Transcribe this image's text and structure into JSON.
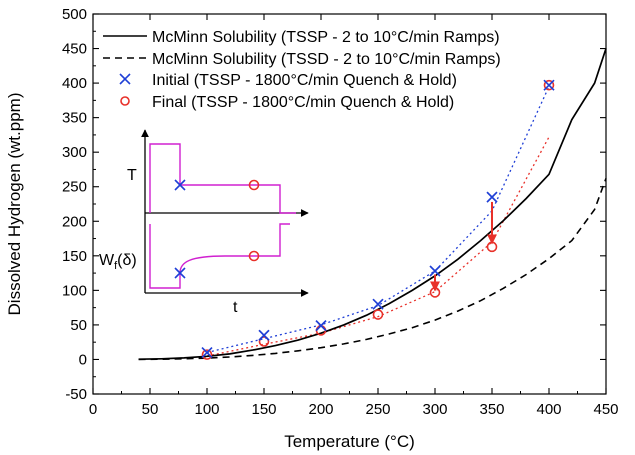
{
  "chart_data": {
    "type": "line",
    "xlabel": "Temperature (°C)",
    "ylabel": "Dissolved Hydrogen (wt.ppm)",
    "xlim": [
      0,
      450
    ],
    "ylim": [
      -50,
      500
    ],
    "x_ticks": [
      0,
      50,
      100,
      150,
      200,
      250,
      300,
      350,
      400,
      450
    ],
    "y_ticks": [
      -50,
      0,
      50,
      100,
      150,
      200,
      250,
      300,
      350,
      400,
      450,
      500
    ],
    "grid": false,
    "legend_position": "top",
    "series": [
      {
        "name": "McMinn Solubility (TSSP - 2 to 10°C/min Ramps)",
        "style": "solid line",
        "color": "#000000",
        "x": [
          40,
          60,
          80,
          100,
          120,
          140,
          160,
          180,
          200,
          220,
          240,
          260,
          280,
          300,
          320,
          340,
          360,
          380,
          400,
          420,
          440,
          450
        ],
        "y": [
          0.3,
          1,
          2.3,
          4.6,
          8,
          13.5,
          20,
          28,
          38,
          50,
          64,
          81,
          100,
          121,
          145,
          172,
          201,
          233,
          268,
          347,
          400,
          450
        ]
      },
      {
        "name": "McMinn Solubility (TSSD - 2 to 10°C/min Ramps)",
        "style": "dashed line",
        "color": "#000000",
        "x": [
          40,
          60,
          80,
          100,
          120,
          140,
          160,
          180,
          200,
          220,
          240,
          260,
          280,
          300,
          320,
          340,
          360,
          380,
          400,
          420,
          440,
          450
        ],
        "y": [
          0.1,
          0.4,
          1,
          2,
          3.6,
          5.8,
          8.8,
          12.5,
          17,
          22.5,
          29,
          37,
          46,
          57,
          70,
          85,
          103,
          123,
          146,
          172,
          217,
          262
        ]
      },
      {
        "name": "Initial (TSSP - 1800°C/min Quench & Hold)",
        "marker": "x",
        "color": "#1f3fd6",
        "x": [
          100,
          150,
          200,
          250,
          300,
          350,
          400
        ],
        "y": [
          10,
          35,
          49,
          80,
          128,
          235,
          397
        ]
      },
      {
        "name": "Final (TSSP - 1800°C/min Quench & Hold)",
        "marker": "circle",
        "color": "#e8312a",
        "x": [
          100,
          150,
          200,
          250,
          300,
          350,
          400
        ],
        "y": [
          7,
          26,
          42,
          65,
          97,
          163,
          397
        ]
      }
    ],
    "fit_lines": [
      {
        "of_series": "Initial (TSSP - 1800°C/min Quench & Hold)",
        "style": "dotted",
        "color": "#1f3fd6",
        "x": [
          100,
          150,
          200,
          250,
          300,
          350,
          400
        ],
        "y": [
          10,
          30,
          50,
          78,
          128,
          215,
          395
        ]
      },
      {
        "of_series": "Final (TSSP - 1800°C/min Quench & Hold)",
        "style": "dotted",
        "color": "#e8312a",
        "x": [
          100,
          150,
          200,
          250,
          300,
          350,
          400
        ],
        "y": [
          5,
          22,
          38,
          62,
          98,
          170,
          322
        ]
      }
    ],
    "arrows": [
      {
        "x": 300,
        "from": 123,
        "to": 100,
        "color": "#e8312a"
      },
      {
        "x": 350,
        "from": 228,
        "to": 168,
        "color": "#e8312a"
      }
    ],
    "inset": {
      "top_axis_label": "T",
      "bottom_axis_label_main": "W",
      "bottom_axis_label_sub": "f",
      "bottom_axis_label_tail": "(δ)",
      "x_axis_label": "t",
      "trace_color": "#d020d0"
    }
  }
}
